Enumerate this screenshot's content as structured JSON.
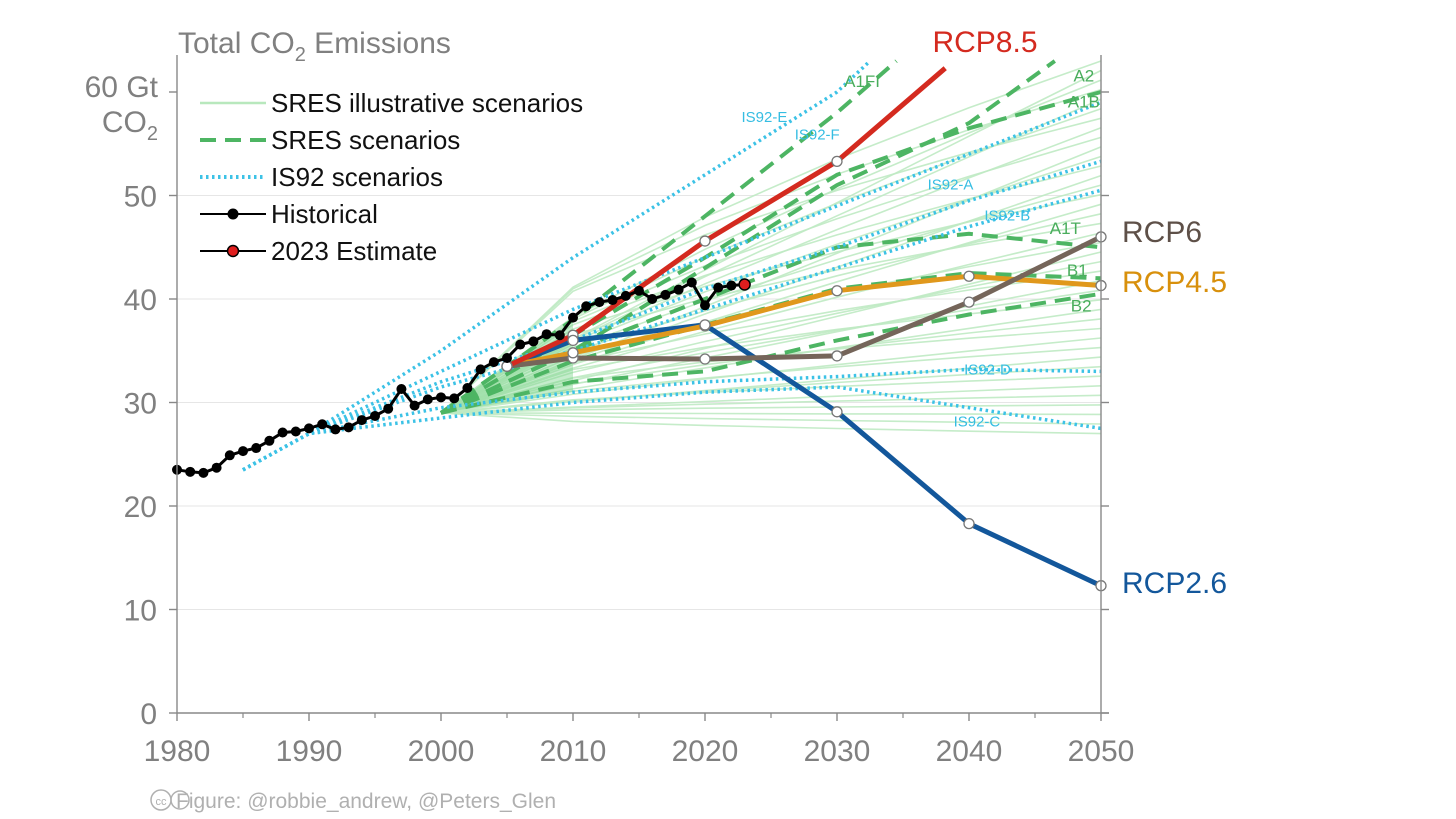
{
  "chart_data": {
    "type": "line",
    "title": "Total CO",
    "title_subscript": "2",
    "title_suffix": " Emissions",
    "ylabel_line1": "60 Gt",
    "ylabel_line2": "CO",
    "ylabel_subscript": "2",
    "xlim": [
      1980,
      2050
    ],
    "ylim": [
      0,
      63
    ],
    "x_ticks": [
      1980,
      1990,
      2000,
      2010,
      2020,
      2030,
      2040,
      2050
    ],
    "x_tick_labels": [
      "1980",
      "1990",
      "2000",
      "2010",
      "2020",
      "2030",
      "2040",
      "2050"
    ],
    "y_ticks": [
      0,
      10,
      20,
      30,
      40,
      50
    ],
    "y_tick_labels": [
      "0",
      "10",
      "20",
      "30",
      "40",
      "50"
    ],
    "grid": true,
    "legend_position": "top-left",
    "legend": [
      {
        "label": "SRES illustrative scenarios",
        "style": "thin-solid",
        "color": "#b8e8bd"
      },
      {
        "label": "SRES scenarios",
        "style": "dashed",
        "color": "#4db563"
      },
      {
        "label": "IS92 scenarios",
        "style": "dotted",
        "color": "#3cc2e6"
      },
      {
        "label": "Historical",
        "style": "line-dot",
        "color": "#000000"
      },
      {
        "label": "2023 Estimate",
        "style": "line-dot",
        "color": "#e01e1e"
      }
    ],
    "historical": {
      "name": "Historical",
      "color": "#000000",
      "x": [
        1980,
        1981,
        1982,
        1983,
        1984,
        1985,
        1986,
        1987,
        1988,
        1989,
        1990,
        1991,
        1992,
        1993,
        1994,
        1995,
        1996,
        1997,
        1998,
        1999,
        2000,
        2001,
        2002,
        2003,
        2004,
        2005,
        2006,
        2007,
        2008,
        2009,
        2010,
        2011,
        2012,
        2013,
        2014,
        2015,
        2016,
        2017,
        2018,
        2019,
        2020,
        2021,
        2022
      ],
      "y": [
        23.5,
        23.3,
        23.2,
        23.7,
        24.9,
        25.3,
        25.6,
        26.3,
        27.1,
        27.2,
        27.5,
        27.9,
        27.4,
        27.6,
        28.3,
        28.7,
        29.4,
        31.3,
        29.7,
        30.3,
        30.5,
        30.4,
        31.4,
        33.2,
        33.9,
        34.3,
        35.6,
        35.9,
        36.6,
        36.5,
        38.2,
        39.3,
        39.7,
        39.9,
        40.3,
        40.8,
        40.0,
        40.4,
        40.9,
        41.6,
        39.4,
        41.1,
        41.3
      ]
    },
    "estimate_2023": {
      "name": "2023 Estimate",
      "color": "#e01e1e",
      "x": 2023,
      "y": 41.4
    },
    "rcps": [
      {
        "name": "RCP8.5",
        "color": "#d42a1f",
        "label_color": "#d42a1f",
        "x": [
          2005,
          2010,
          2020,
          2030,
          2038.2
        ],
        "y": [
          33.5,
          36.5,
          45.6,
          53.3,
          62.3
        ],
        "markers": [
          false,
          true,
          true,
          true,
          false
        ]
      },
      {
        "name": "RCP6",
        "color": "#75655a",
        "label_color": "#5e5048",
        "x": [
          2005,
          2010,
          2020,
          2030,
          2040,
          2050
        ],
        "y": [
          33.5,
          34.3,
          34.2,
          34.5,
          39.7,
          46.0
        ],
        "markers": [
          true,
          true,
          true,
          true,
          true,
          true
        ]
      },
      {
        "name": "RCP4.5",
        "color": "#e0981c",
        "label_color": "#d8900c",
        "x": [
          2005,
          2010,
          2020,
          2030,
          2040,
          2050
        ],
        "y": [
          33.5,
          34.8,
          37.4,
          40.8,
          42.2,
          41.3
        ],
        "markers": [
          true,
          true,
          true,
          true,
          true,
          true
        ]
      },
      {
        "name": "RCP2.6",
        "color": "#13579b",
        "label_color": "#13579b",
        "x": [
          2005,
          2010,
          2020,
          2030,
          2040,
          2050
        ],
        "y": [
          33.5,
          36.0,
          37.5,
          29.1,
          18.3,
          12.3
        ],
        "markers": [
          true,
          true,
          true,
          true,
          true,
          true
        ]
      }
    ],
    "sres_scenarios": [
      {
        "name": "A1FI",
        "x": [
          2000,
          2010,
          2020,
          2030,
          2034.5
        ],
        "y": [
          29,
          38,
          48,
          58,
          63
        ]
      },
      {
        "name": "A2",
        "x": [
          2000,
          2010,
          2020,
          2030,
          2040,
          2046.5
        ],
        "y": [
          29,
          35,
          43,
          51,
          57,
          63
        ]
      },
      {
        "name": "A1B",
        "x": [
          2000,
          2010,
          2020,
          2030,
          2040,
          2050
        ],
        "y": [
          29,
          36.5,
          44,
          52,
          56.5,
          60
        ]
      },
      {
        "name": "A1T",
        "x": [
          2000,
          2010,
          2020,
          2030,
          2040,
          2050
        ],
        "y": [
          29,
          35,
          40,
          45,
          46.3,
          45
        ]
      },
      {
        "name": "B1",
        "x": [
          2000,
          2010,
          2020,
          2030,
          2040,
          2050
        ],
        "y": [
          29,
          34,
          37.5,
          41,
          42.5,
          42
        ]
      },
      {
        "name": "B2",
        "x": [
          2000,
          2010,
          2020,
          2030,
          2040,
          2050
        ],
        "y": [
          29,
          32,
          33,
          36,
          38.5,
          40.5
        ]
      }
    ],
    "is92_scenarios": [
      {
        "name": "IS92-E",
        "x": [
          1985,
          1990,
          2000,
          2010,
          2020,
          2030,
          2032.5
        ],
        "y": [
          23.5,
          27,
          35,
          44,
          52,
          60,
          63
        ]
      },
      {
        "name": "IS92-F",
        "x": [
          1985,
          1990,
          2000,
          2010,
          2020,
          2030,
          2040,
          2050
        ],
        "y": [
          23.5,
          27,
          33,
          39,
          44,
          49,
          54,
          59
        ]
      },
      {
        "name": "IS92-A",
        "x": [
          1985,
          1990,
          2000,
          2010,
          2020,
          2030,
          2040,
          2050
        ],
        "y": [
          23.5,
          27,
          32,
          36,
          41,
          45,
          49.5,
          53.3
        ]
      },
      {
        "name": "IS92-B",
        "x": [
          1985,
          1990,
          2000,
          2010,
          2020,
          2030,
          2040,
          2050
        ],
        "y": [
          23.5,
          27,
          31.5,
          35,
          39,
          43,
          47,
          50.5
        ]
      },
      {
        "name": "IS92-D",
        "x": [
          1985,
          1990,
          2000,
          2010,
          2020,
          2030,
          2040,
          2050
        ],
        "y": [
          23.5,
          27,
          29.5,
          31,
          32,
          32.5,
          33.2,
          33
        ]
      },
      {
        "name": "IS92-C",
        "x": [
          1985,
          1990,
          2000,
          2010,
          2020,
          2030,
          2040,
          2050
        ],
        "y": [
          23.5,
          27,
          28.5,
          30,
          31,
          31.5,
          29.5,
          27.5
        ]
      }
    ],
    "sres_illustrative_x": [
      2000,
      2010,
      2020,
      2030,
      2040,
      2050
    ],
    "sres_illustrative_count": 40,
    "sres_illustrative_range_2050": [
      27,
      63
    ],
    "scenario_labels": [
      {
        "text": "A1FI",
        "kind": "sres",
        "x": 2031.9,
        "y": 60.5
      },
      {
        "text": "A2",
        "kind": "sres",
        "x": 2048.7,
        "y": 61.0
      },
      {
        "text": "A1B",
        "kind": "sres",
        "x": 2048.7,
        "y": 58.5
      },
      {
        "text": "A1T",
        "kind": "sres",
        "x": 2047.3,
        "y": 46.3
      },
      {
        "text": "B1",
        "kind": "sres",
        "x": 2048.2,
        "y": 42.2
      },
      {
        "text": "B2",
        "kind": "sres",
        "x": 2048.5,
        "y": 38.8
      },
      {
        "text": "IS92-E",
        "kind": "is92",
        "x": 2024.5,
        "y": 57.1
      },
      {
        "text": "IS92-F",
        "kind": "is92",
        "x": 2028.5,
        "y": 55.4
      },
      {
        "text": "IS92-A",
        "kind": "is92",
        "x": 2038.6,
        "y": 50.6
      },
      {
        "text": "IS92-B",
        "kind": "is92",
        "x": 2042.9,
        "y": 47.6
      },
      {
        "text": "IS92-D",
        "kind": "is92",
        "x": 2041.4,
        "y": 32.7
      },
      {
        "text": "IS92-C",
        "kind": "is92",
        "x": 2040.6,
        "y": 27.7
      }
    ]
  },
  "credit": {
    "cc_symbol": "cc",
    "text": "Figure: @robbie_andrew, @Peters_Glen"
  }
}
